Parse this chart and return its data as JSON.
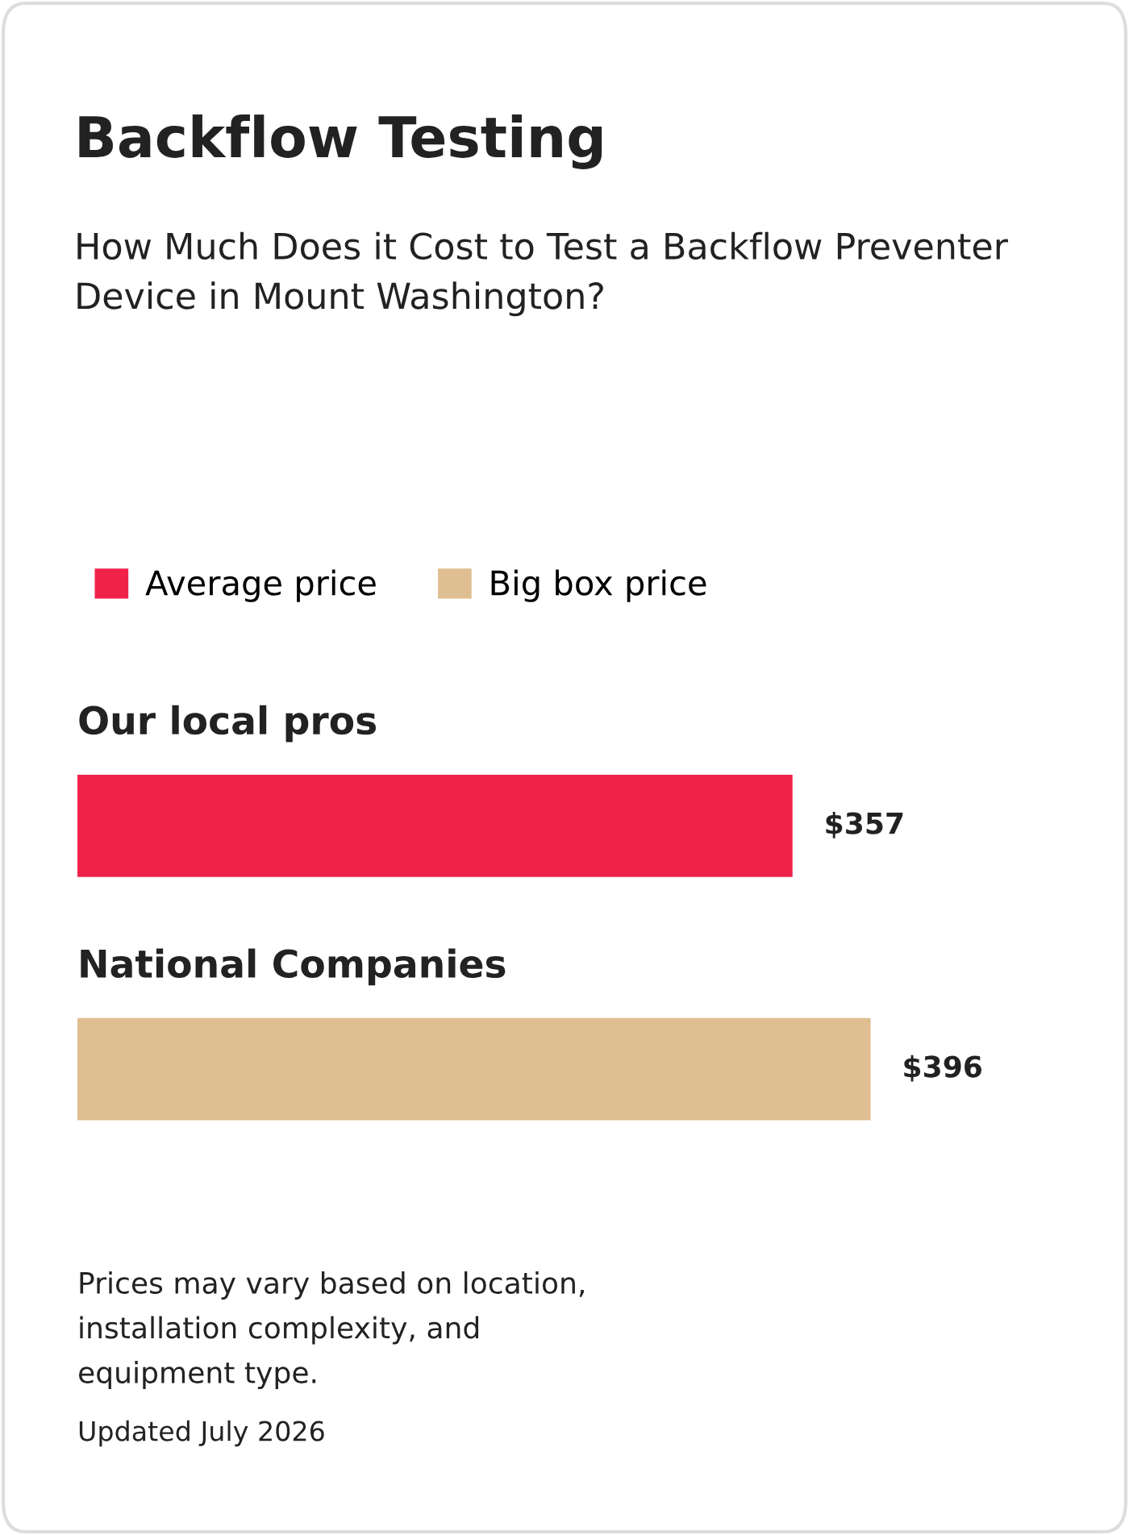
{
  "chart_data": {
    "type": "bar",
    "orientation": "horizontal",
    "stacked": true,
    "title": "Backflow Testing",
    "subtitle": "How Much Does it Cost to Test a Backflow Preventer\nDevice in Mount Washington?",
    "categories": [
      "Our local pros",
      "National Companies"
    ],
    "series": [
      {
        "name": "Average price",
        "color": "#f0224a",
        "values": [
          357,
          null
        ],
        "value_labels": [
          "$357",
          null
        ]
      },
      {
        "name": "Big box price",
        "color": "#dfbe91",
        "values": [
          null,
          396
        ],
        "value_labels": [
          null,
          "$396"
        ]
      }
    ],
    "legend": "top left",
    "annotations": [
      "Prices may vary based on location,\ninstallation complexity, and\nequipment type.",
      "Updated July 2026"
    ]
  }
}
